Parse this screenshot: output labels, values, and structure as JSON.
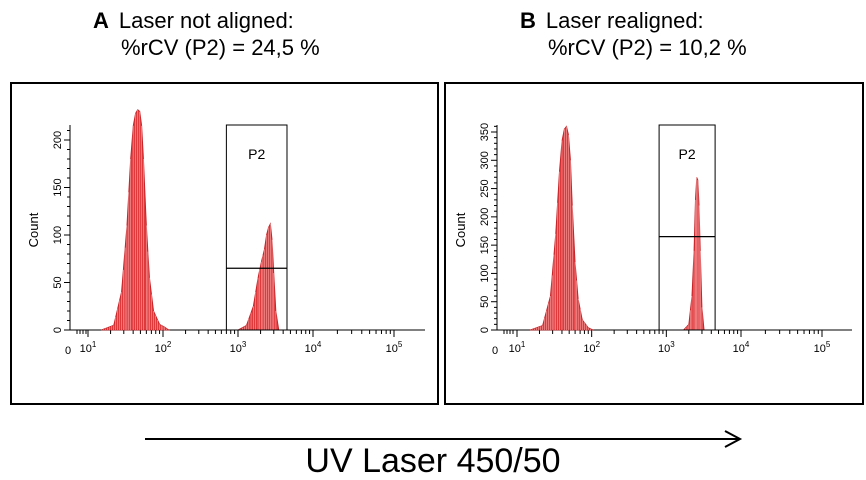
{
  "figure": {
    "xlabel": "UV Laser 450/50"
  },
  "panels": [
    {
      "letter": "A",
      "title_line1": "Laser not aligned:",
      "title_line2": "%rCV (P2) = 24,5 %"
    },
    {
      "letter": "B",
      "title_line1": "Laser realigned:",
      "title_line2": "%rCV (P2) = 10,2 %"
    }
  ],
  "chart_data": [
    {
      "type": "area",
      "panel": "A",
      "ylabel": "Count",
      "xscale": "log",
      "xlim": [
        1,
        100000
      ],
      "ylim": [
        0,
        230
      ],
      "y_ticks": [
        0,
        50,
        100,
        150,
        200
      ],
      "x_tick_labels": [
        "0",
        "10^1",
        "10^2",
        "10^3",
        "10^4",
        "10^5"
      ],
      "gate": {
        "name": "P2",
        "x_range": [
          700,
          4500
        ],
        "marker_y": 65
      },
      "fill_color": "#e0393c",
      "series": [
        {
          "x": [
            15,
            22,
            28,
            33,
            37,
            40,
            43,
            46,
            49,
            52,
            55,
            60,
            66,
            75,
            90,
            105,
            120
          ],
          "values": [
            0,
            5,
            40,
            110,
            180,
            215,
            228,
            232,
            230,
            215,
            180,
            110,
            55,
            20,
            6,
            3,
            0
          ]
        },
        {
          "x": [
            1000,
            1300,
            1600,
            1850,
            2050,
            2250,
            2400,
            2550,
            2700,
            2850,
            3000,
            3200,
            3500
          ],
          "values": [
            0,
            5,
            25,
            55,
            72,
            85,
            100,
            108,
            112,
            95,
            60,
            20,
            0
          ]
        }
      ]
    },
    {
      "type": "area",
      "panel": "B",
      "ylabel": "Count",
      "xscale": "log",
      "xlim": [
        1,
        100000
      ],
      "ylim": [
        0,
        370
      ],
      "y_ticks": [
        0,
        50,
        100,
        150,
        200,
        250,
        300,
        350
      ],
      "x_tick_labels": [
        "0",
        "10^1",
        "10^2",
        "10^3",
        "10^4",
        "10^5"
      ],
      "gate": {
        "name": "P2",
        "x_range": [
          800,
          4500
        ],
        "marker_y": 165
      },
      "fill_color": "#e0393c",
      "series": [
        {
          "x": [
            15,
            22,
            28,
            33,
            37,
            40,
            43,
            46,
            49,
            52,
            55,
            60,
            66,
            75,
            90,
            105
          ],
          "values": [
            0,
            8,
            60,
            170,
            280,
            335,
            355,
            360,
            345,
            300,
            220,
            120,
            55,
            18,
            4,
            0
          ]
        },
        {
          "x": [
            1700,
            2000,
            2200,
            2350,
            2450,
            2550,
            2650,
            2750,
            2850,
            3000,
            3200
          ],
          "values": [
            0,
            10,
            60,
            140,
            230,
            270,
            265,
            220,
            140,
            40,
            0
          ]
        }
      ]
    }
  ]
}
